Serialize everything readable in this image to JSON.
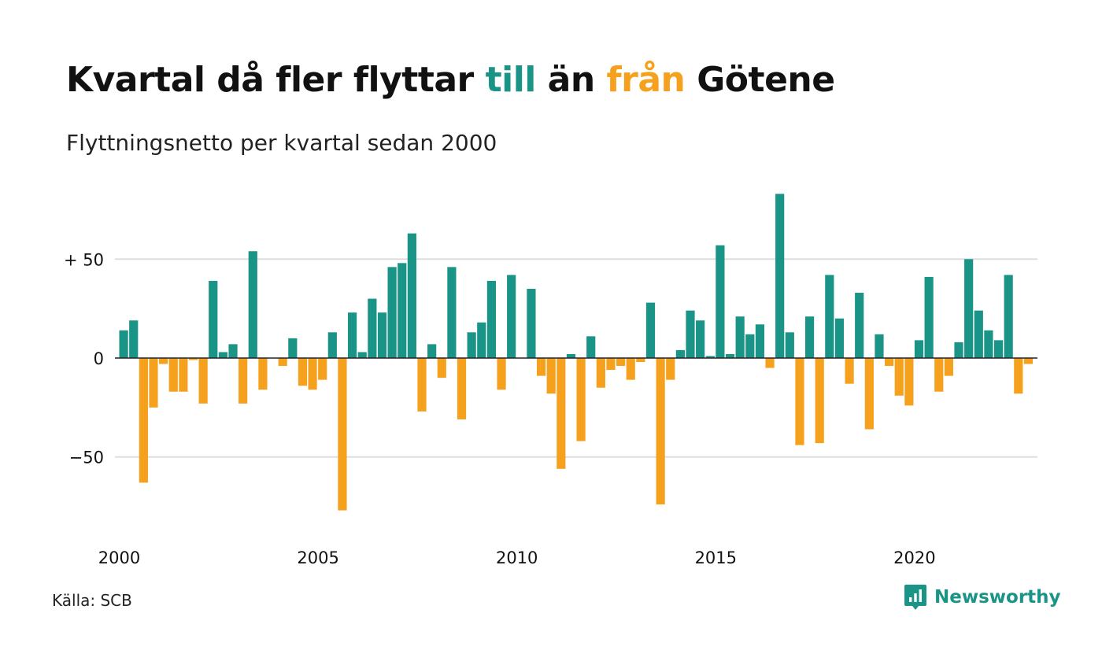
{
  "title": {
    "prefix": "Kvartal då fler flyttar ",
    "word_in": "till",
    "middle": " än ",
    "word_out": "från",
    "suffix": " Götene"
  },
  "subtitle": "Flyttningsnetto per kvartal sedan 2000",
  "source": "Källa: SCB",
  "brand": {
    "name": "Newsworthy",
    "icon": "newsworthy-logo-icon"
  },
  "colors": {
    "positive": "#1a9486",
    "negative": "#f5a11d",
    "grid": "#dddddd",
    "text": "#111111"
  },
  "chart_data": {
    "type": "bar",
    "title": "Kvartal då fler flyttar till än från Götene",
    "subtitle": "Flyttningsnetto per kvartal sedan 2000",
    "ylim": [
      -85,
      85
    ],
    "yticks": [
      {
        "value": 50,
        "label": "+ 50"
      },
      {
        "value": 0,
        "label": "0"
      },
      {
        "value": -50,
        "label": "−50"
      }
    ],
    "xticks": [
      {
        "quarter_index": 0,
        "label": "2000"
      },
      {
        "quarter_index": 20,
        "label": "2005"
      },
      {
        "quarter_index": 40,
        "label": "2010"
      },
      {
        "quarter_index": 60,
        "label": "2015"
      },
      {
        "quarter_index": 80,
        "label": "2020"
      }
    ],
    "grid": "horizontal",
    "series": [
      {
        "values": [
          14,
          19,
          -63,
          -25,
          -3,
          -17,
          -17,
          -1,
          -23,
          39,
          3,
          7,
          -23,
          54,
          -16,
          0,
          -4,
          10,
          -14,
          -16,
          -11,
          13,
          -77,
          23,
          3,
          30,
          23,
          46,
          48,
          63,
          -27,
          7,
          -10,
          46,
          -31,
          13,
          18,
          39,
          -16,
          42,
          0,
          35,
          -9,
          -18,
          -56,
          2,
          -42,
          11,
          -15,
          -6,
          -4,
          -11,
          -2,
          28,
          -74,
          -11,
          4,
          24,
          19,
          1,
          57,
          2,
          21,
          12,
          17,
          -5,
          83,
          13,
          -44,
          21,
          -43,
          42,
          20,
          -13,
          33,
          -36,
          12,
          -4,
          -19,
          -24,
          9,
          41,
          -17,
          -9,
          8,
          50,
          24,
          14,
          9,
          42,
          -18,
          -3
        ]
      }
    ]
  }
}
